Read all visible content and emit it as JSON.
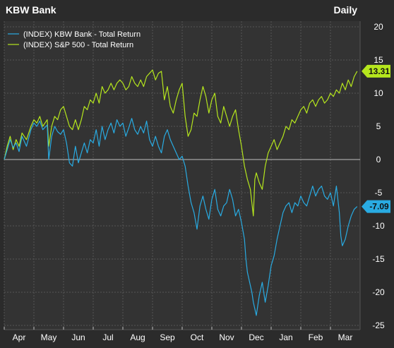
{
  "header": {
    "title": "KBW Bank",
    "interval": "Daily"
  },
  "colors": {
    "background": "#2b2b2b",
    "plot_background": "#333333",
    "grid": "#555555",
    "zero_line": "#bfbfbf",
    "text": "#ffffff",
    "kbw_series": "#29abe2",
    "sp500_series": "#b5e61d"
  },
  "chart_data": {
    "type": "line",
    "title": "KBW Bank",
    "interval": "Daily",
    "ylim": [
      -25,
      20
    ],
    "yticks": [
      20,
      15,
      10,
      5,
      0,
      -5,
      -10,
      -15,
      -20,
      -25
    ],
    "ytick_labels": [
      "20",
      "15",
      "10",
      "5",
      "0",
      "-5",
      "-10",
      "-15",
      "-20",
      "-25"
    ],
    "x_months": [
      "Apr",
      "May",
      "Jun",
      "Jul",
      "Aug",
      "Sep",
      "Oct",
      "Nov",
      "Dec",
      "Jan",
      "Feb",
      "Mar"
    ],
    "x_range": [
      0,
      12
    ],
    "grid": true,
    "legend": "top-left",
    "series": [
      {
        "name": "(INDEX) KBW Bank - Total Return",
        "color": "#29abe2",
        "last_value": -7.09,
        "last_label": "-7.09",
        "x": [
          0,
          0.1,
          0.2,
          0.3,
          0.4,
          0.5,
          0.6,
          0.75,
          0.9,
          1.0,
          1.1,
          1.2,
          1.3,
          1.45,
          1.5,
          1.6,
          1.7,
          1.8,
          1.9,
          2.0,
          2.1,
          2.2,
          2.3,
          2.4,
          2.5,
          2.6,
          2.7,
          2.8,
          2.9,
          3.0,
          3.1,
          3.2,
          3.3,
          3.4,
          3.5,
          3.6,
          3.7,
          3.8,
          3.9,
          4.0,
          4.1,
          4.2,
          4.3,
          4.4,
          4.5,
          4.6,
          4.7,
          4.8,
          4.9,
          5.0,
          5.1,
          5.2,
          5.3,
          5.4,
          5.5,
          5.6,
          5.7,
          5.8,
          5.9,
          6.0,
          6.1,
          6.2,
          6.3,
          6.4,
          6.5,
          6.6,
          6.7,
          6.8,
          6.9,
          7.0,
          7.1,
          7.2,
          7.3,
          7.4,
          7.5,
          7.6,
          7.7,
          7.8,
          7.9,
          8.0,
          8.1,
          8.15,
          8.2,
          8.3,
          8.35,
          8.4,
          8.5,
          8.6,
          8.7,
          8.8,
          8.9,
          9.0,
          9.1,
          9.2,
          9.3,
          9.4,
          9.5,
          9.6,
          9.7,
          9.8,
          9.9,
          10.0,
          10.1,
          10.2,
          10.3,
          10.4,
          10.5,
          10.6,
          10.7,
          10.8,
          10.9,
          11.0,
          11.1,
          11.2,
          11.3,
          11.35,
          11.4,
          11.5,
          11.6,
          11.7,
          11.8,
          11.9
        ],
        "values": [
          0,
          1.5,
          3.0,
          1.8,
          2.5,
          1.2,
          3.5,
          2.0,
          4.5,
          5.5,
          5.0,
          5.8,
          4.5,
          5.2,
          0,
          3.5,
          5.0,
          4.2,
          3.8,
          4.5,
          2.5,
          -0.5,
          -1.0,
          2.0,
          -0.5,
          1.0,
          2.5,
          1.0,
          3.0,
          2.5,
          4.5,
          2.0,
          5.0,
          3.0,
          4.5,
          5.5,
          4.0,
          6.0,
          5.0,
          5.5,
          3.5,
          4.8,
          6.2,
          4.5,
          3.8,
          5.0,
          4.0,
          5.8,
          3.0,
          2.0,
          3.5,
          2.0,
          1.0,
          3.5,
          4.5,
          3.0,
          2.0,
          1.0,
          0,
          0.5,
          -1.0,
          -4.0,
          -6.5,
          -8.0,
          -10.5,
          -7.0,
          -5.5,
          -7.5,
          -9.0,
          -6.0,
          -4.5,
          -7.5,
          -8.5,
          -7.0,
          -6.5,
          -4.5,
          -6.0,
          -8.5,
          -7.5,
          -9.5,
          -12.0,
          -15.0,
          -17.0,
          -19.0,
          -20.0,
          -21.5,
          -23.5,
          -20.5,
          -18.5,
          -21.5,
          -19.0,
          -16.0,
          -14.5,
          -12.0,
          -10.0,
          -8.0,
          -7.0,
          -6.5,
          -8.0,
          -6.5,
          -7.0,
          -5.5,
          -6.5,
          -7.0,
          -5.5,
          -4.0,
          -5.5,
          -4.5,
          -4.0,
          -5.5,
          -6.0,
          -5.0,
          -7.0,
          -4.0,
          -8.0,
          -11.5,
          -13.0,
          -12.0,
          -10.0,
          -8.5,
          -7.5,
          -7.09
        ]
      },
      {
        "name": "(INDEX) S&P 500 - Total Return",
        "color": "#b5e61d",
        "last_value": 13.31,
        "last_label": "13.31",
        "x": [
          0,
          0.1,
          0.2,
          0.3,
          0.4,
          0.5,
          0.6,
          0.75,
          0.9,
          1.0,
          1.1,
          1.2,
          1.3,
          1.45,
          1.5,
          1.6,
          1.7,
          1.8,
          1.9,
          2.0,
          2.1,
          2.2,
          2.3,
          2.4,
          2.5,
          2.6,
          2.7,
          2.8,
          2.9,
          3.0,
          3.1,
          3.2,
          3.3,
          3.4,
          3.5,
          3.6,
          3.7,
          3.8,
          3.9,
          4.0,
          4.1,
          4.2,
          4.3,
          4.4,
          4.5,
          4.6,
          4.7,
          4.8,
          4.9,
          5.0,
          5.1,
          5.2,
          5.3,
          5.4,
          5.5,
          5.6,
          5.7,
          5.8,
          5.9,
          6.0,
          6.1,
          6.2,
          6.3,
          6.4,
          6.5,
          6.6,
          6.7,
          6.8,
          6.9,
          7.0,
          7.1,
          7.2,
          7.3,
          7.4,
          7.5,
          7.6,
          7.7,
          7.8,
          7.9,
          8.0,
          8.1,
          8.2,
          8.3,
          8.4,
          8.45,
          8.5,
          8.6,
          8.7,
          8.8,
          8.9,
          9.0,
          9.1,
          9.2,
          9.3,
          9.4,
          9.5,
          9.6,
          9.7,
          9.8,
          9.9,
          10.0,
          10.1,
          10.2,
          10.3,
          10.4,
          10.5,
          10.6,
          10.7,
          10.8,
          10.9,
          11.0,
          11.1,
          11.2,
          11.3,
          11.4,
          11.5,
          11.6,
          11.7,
          11.8,
          11.9
        ],
        "values": [
          0,
          2.0,
          3.5,
          1.5,
          3.0,
          2.0,
          4.0,
          3.0,
          5.0,
          6.0,
          5.5,
          6.5,
          5.0,
          6.0,
          2.0,
          5.0,
          6.5,
          6.0,
          7.5,
          8.0,
          6.5,
          5.0,
          4.5,
          6.0,
          4.5,
          6.0,
          8.0,
          7.5,
          9.0,
          8.5,
          10.0,
          8.5,
          11.0,
          10.0,
          10.5,
          11.5,
          10.5,
          11.5,
          12.0,
          11.5,
          10.5,
          11.0,
          12.5,
          11.5,
          11.0,
          12.0,
          11.0,
          12.5,
          13.0,
          13.5,
          12.0,
          13.0,
          13.3,
          9.0,
          11.0,
          8.0,
          7.0,
          9.0,
          10.5,
          11.5,
          6.5,
          3.5,
          4.5,
          7.0,
          6.5,
          9.0,
          11.0,
          9.5,
          7.0,
          9.0,
          10.0,
          6.5,
          5.5,
          8.0,
          6.5,
          5.0,
          6.5,
          7.5,
          4.5,
          2.0,
          -1.0,
          -3.0,
          -4.5,
          -8.5,
          -3.0,
          -2.0,
          -3.5,
          -4.5,
          -1.0,
          1.0,
          2.0,
          3.0,
          1.5,
          2.5,
          3.5,
          5.0,
          4.5,
          6.0,
          5.5,
          6.5,
          7.5,
          8.0,
          7.0,
          8.5,
          9.0,
          8.0,
          9.0,
          9.5,
          8.5,
          9.0,
          10.0,
          9.5,
          10.5,
          10.0,
          11.5,
          10.5,
          12.0,
          11.0,
          12.5,
          13.31
        ]
      }
    ]
  }
}
